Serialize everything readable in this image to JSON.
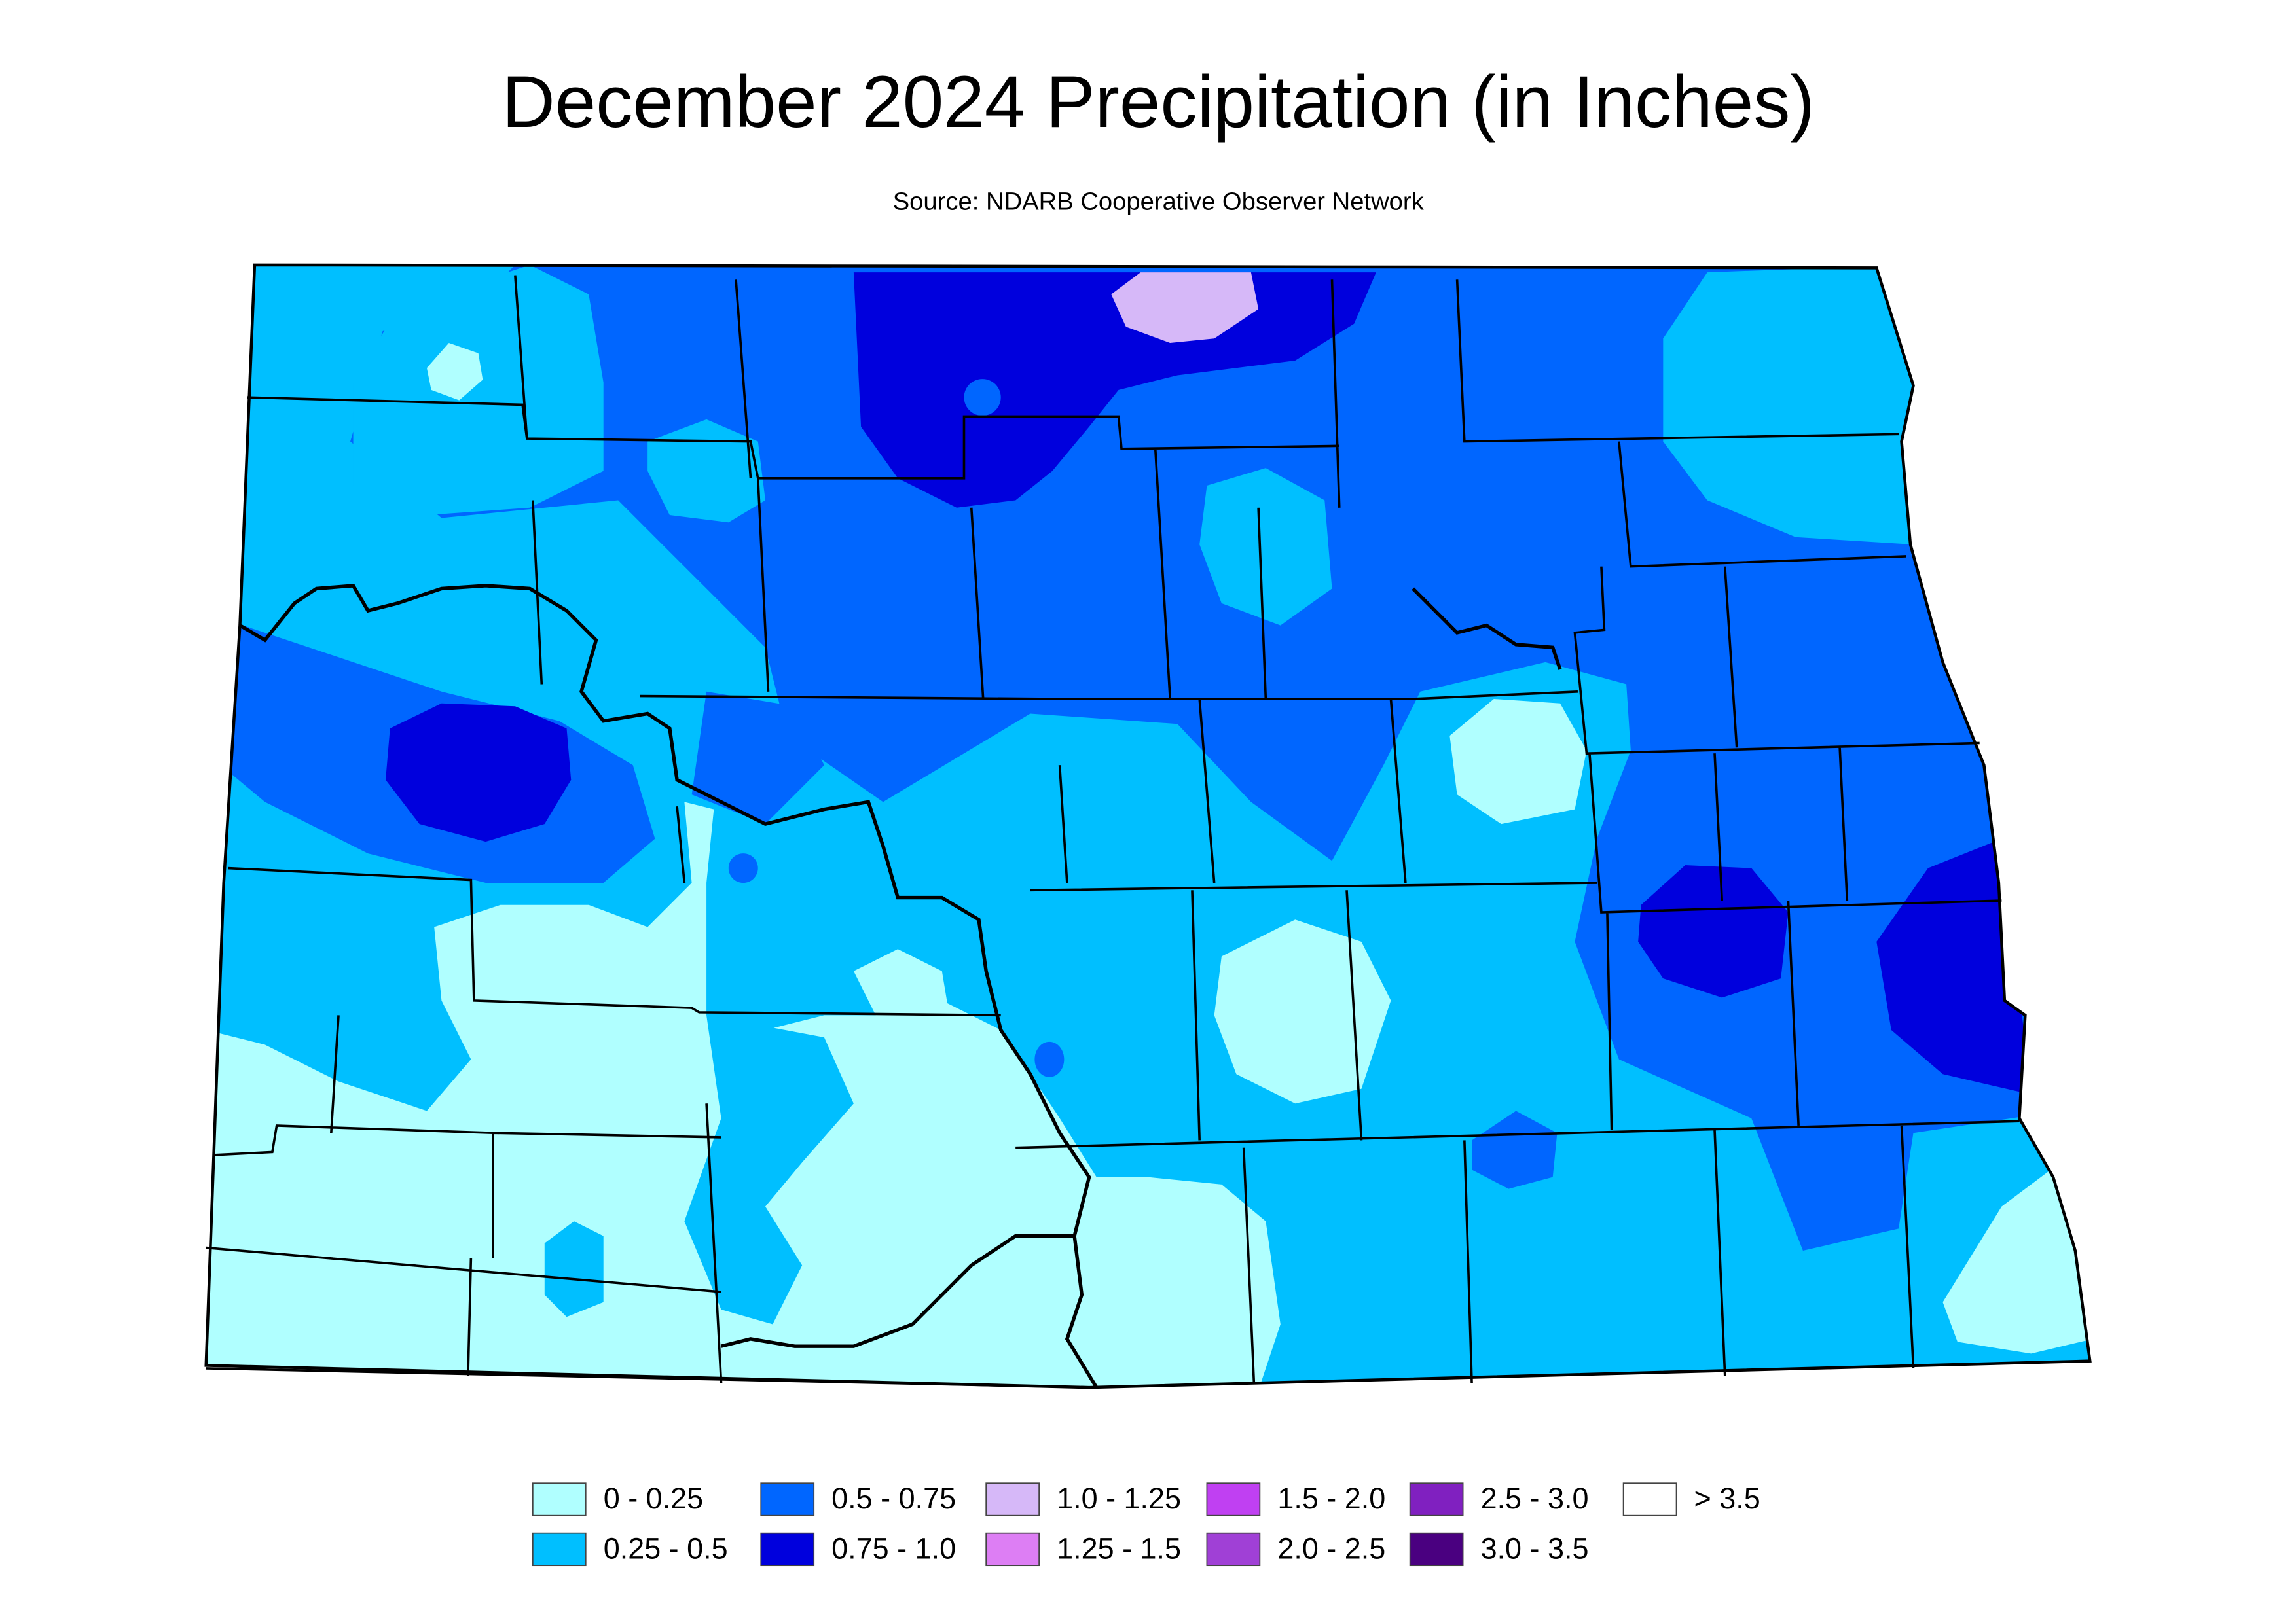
{
  "title": "December 2024 Precipitation (in Inches)",
  "subtitle": "Source: NDARB Cooperative Observer Network",
  "legend": [
    {
      "label": "0 - 0.25",
      "color": "#b0ffff"
    },
    {
      "label": "0.25 - 0.5",
      "color": "#00bfff"
    },
    {
      "label": "0.5 - 0.75",
      "color": "#0066ff"
    },
    {
      "label": "0.75 - 1.0",
      "color": "#0000dd"
    },
    {
      "label": "1.0 - 1.25",
      "color": "#d6b8f8"
    },
    {
      "label": "1.25 - 1.5",
      "color": "#dd7ef4"
    },
    {
      "label": "1.5 - 2.0",
      "color": "#c040f2"
    },
    {
      "label": "2.0 - 2.5",
      "color": "#a040d6"
    },
    {
      "label": "2.5 - 3.0",
      "color": "#8020c0"
    },
    {
      "label": "3.0 - 3.5",
      "color": "#4a0080"
    },
    {
      "label": "> 3.5",
      "color": "#ffffff"
    }
  ]
}
